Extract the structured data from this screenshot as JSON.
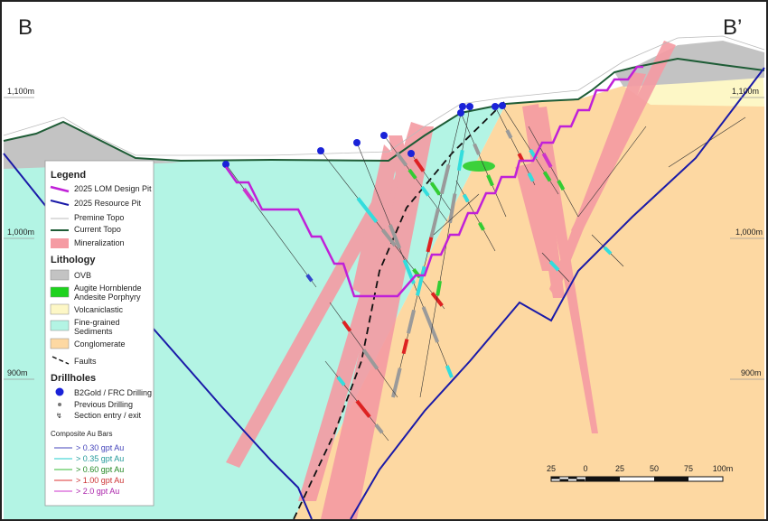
{
  "section": {
    "left_label": "B",
    "right_label": "B’"
  },
  "elevation_labels": {
    "left": [
      "1,100m",
      "1,000m",
      "900m"
    ],
    "right": [
      "1,100m",
      "1,000m",
      "900m"
    ]
  },
  "legend": {
    "title": "Legend",
    "pit_items": [
      "2025 LOM Design Pit",
      "2025 Resource Pit",
      "Premine Topo",
      "Current Topo",
      "Mineralization"
    ],
    "lithology_title": "Lithology",
    "lithology_items": [
      [
        "OVB"
      ],
      [
        "Augite Hornblende",
        "Andesite Porphyry"
      ],
      [
        "Volcaniclastic"
      ],
      [
        "Fine-grained",
        "Sediments"
      ],
      [
        "Conglomerate"
      ]
    ],
    "fault_item": "Faults",
    "drillholes_title": "Drillholes",
    "drillhole_items": [
      "B2Gold / FRC Drilling",
      "Previous Drilling",
      "Section entry / exit"
    ],
    "au_title": "Composite Au Bars",
    "au_items": [
      "> 0.30 gpt Au",
      "> 0.35 gpt Au",
      "> 0.60 gpt Au",
      "> 1.00 gpt Au",
      "> 2.0 gpt Au"
    ]
  },
  "scale_bar": {
    "labels": [
      "25",
      "0",
      "25",
      "50",
      "75",
      "100m"
    ]
  }
}
